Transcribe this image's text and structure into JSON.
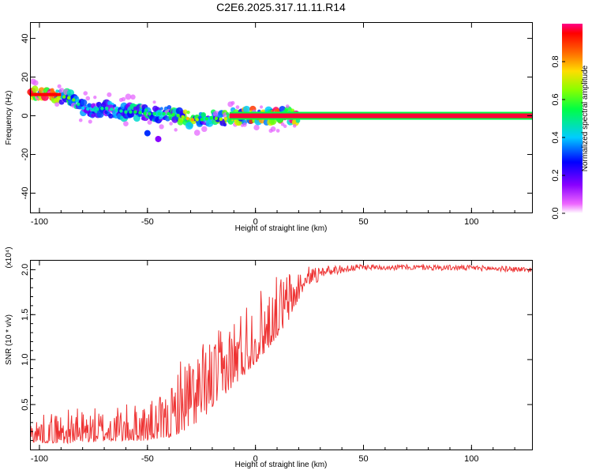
{
  "title": "C2E6.2025.317.11.11.R14",
  "chart_data": [
    {
      "type": "heatmap",
      "xlabel": "Height of straight line (km)",
      "ylabel": "Frequency (Hz)",
      "xlim": [
        -104,
        128
      ],
      "ylim": [
        -50,
        48
      ],
      "xticks": [
        -100,
        -50,
        0,
        50,
        100
      ],
      "yticks": [
        -40,
        -20,
        0,
        20,
        40
      ],
      "xtick_labels": [
        "-100",
        "-50",
        "0",
        "50",
        "100"
      ],
      "ytick_labels": [
        "-40",
        "-20",
        "0",
        "20",
        "40"
      ],
      "ridge": [
        {
          "x": -104,
          "f": 11,
          "a": 0.85
        },
        {
          "x": -95,
          "f": 11,
          "a": 0.95
        },
        {
          "x": -90,
          "f": 10,
          "a": 0.5
        },
        {
          "x": -85,
          "f": 9,
          "a": 0.55
        },
        {
          "x": -80,
          "f": 4,
          "a": 0.3
        },
        {
          "x": -75,
          "f": 3,
          "a": 0.35
        },
        {
          "x": -70,
          "f": 4,
          "a": 0.4
        },
        {
          "x": -65,
          "f": 3,
          "a": 0.35
        },
        {
          "x": -60,
          "f": 2,
          "a": 0.4
        },
        {
          "x": -55,
          "f": 2,
          "a": 0.45
        },
        {
          "x": -50,
          "f": 1,
          "a": 0.45
        },
        {
          "x": -45,
          "f": 1,
          "a": 0.4
        },
        {
          "x": -40,
          "f": 1,
          "a": 0.45
        },
        {
          "x": -35,
          "f": 0,
          "a": 0.5
        },
        {
          "x": -30,
          "f": -2,
          "a": 0.75
        },
        {
          "x": -25,
          "f": -2,
          "a": 0.45
        },
        {
          "x": -20,
          "f": -1,
          "a": 0.45
        },
        {
          "x": -15,
          "f": -2,
          "a": 0.6
        },
        {
          "x": -10,
          "f": 0,
          "a": 0.65
        },
        {
          "x": -5,
          "f": 0,
          "a": 0.7
        },
        {
          "x": 0,
          "f": 0,
          "a": 0.75
        },
        {
          "x": 5,
          "f": 0,
          "a": 0.75
        },
        {
          "x": 10,
          "f": 0,
          "a": 0.8
        },
        {
          "x": 15,
          "f": 0,
          "a": 0.9
        },
        {
          "x": 20,
          "f": 0,
          "a": 1.0
        },
        {
          "x": 128,
          "f": 0,
          "a": 1.0
        }
      ],
      "scatter_cluster": [
        {
          "x": -50,
          "f": -9,
          "a": 0.3
        },
        {
          "x": -45,
          "f": -12,
          "a": 0.15
        }
      ]
    },
    {
      "type": "colorbar",
      "label": "Normalized spectral amplitude",
      "range": [
        0,
        1
      ],
      "ticks": [
        0.0,
        0.2,
        0.4,
        0.6,
        0.8
      ],
      "tick_labels": [
        "0.0",
        "0.2",
        "0.4",
        "0.6",
        "0.8"
      ]
    },
    {
      "type": "line",
      "xlabel": "Height of straight line (km)",
      "ylabel": "SNR (10 * v/v)",
      "ylabel_multiplier": "(x10⁴)",
      "xlim": [
        -104,
        128
      ],
      "ylim": [
        0,
        2.1
      ],
      "xticks": [
        -100,
        -50,
        0,
        50,
        100
      ],
      "yticks": [
        0.5,
        1.0,
        1.5,
        2.0
      ],
      "xtick_labels": [
        "-100",
        "-50",
        "0",
        "50",
        "100"
      ],
      "ytick_labels": [
        "0.5",
        "1.0",
        "1.5",
        "2.0"
      ],
      "series": [
        {
          "name": "SNR",
          "color": "#ee3333",
          "envelope": [
            {
              "x": -104,
              "base": 0.12,
              "amp": 0.25
            },
            {
              "x": -90,
              "base": 0.12,
              "amp": 0.35
            },
            {
              "x": -70,
              "base": 0.14,
              "amp": 0.35
            },
            {
              "x": -50,
              "base": 0.16,
              "amp": 0.4
            },
            {
              "x": -40,
              "base": 0.2,
              "amp": 0.45
            },
            {
              "x": -35,
              "base": 0.3,
              "amp": 0.8
            },
            {
              "x": -25,
              "base": 0.45,
              "amp": 0.8
            },
            {
              "x": -15,
              "base": 0.7,
              "amp": 0.7
            },
            {
              "x": -5,
              "base": 0.95,
              "amp": 0.8
            },
            {
              "x": 5,
              "base": 1.2,
              "amp": 0.7
            },
            {
              "x": 15,
              "base": 1.5,
              "amp": 0.55
            },
            {
              "x": 22,
              "base": 1.8,
              "amp": 0.25
            },
            {
              "x": 30,
              "base": 1.98,
              "amp": 0.06
            },
            {
              "x": 50,
              "base": 2.03,
              "amp": 0.03
            },
            {
              "x": 100,
              "base": 2.02,
              "amp": 0.03
            },
            {
              "x": 128,
              "base": 2.0,
              "amp": 0.03
            }
          ]
        }
      ]
    }
  ]
}
